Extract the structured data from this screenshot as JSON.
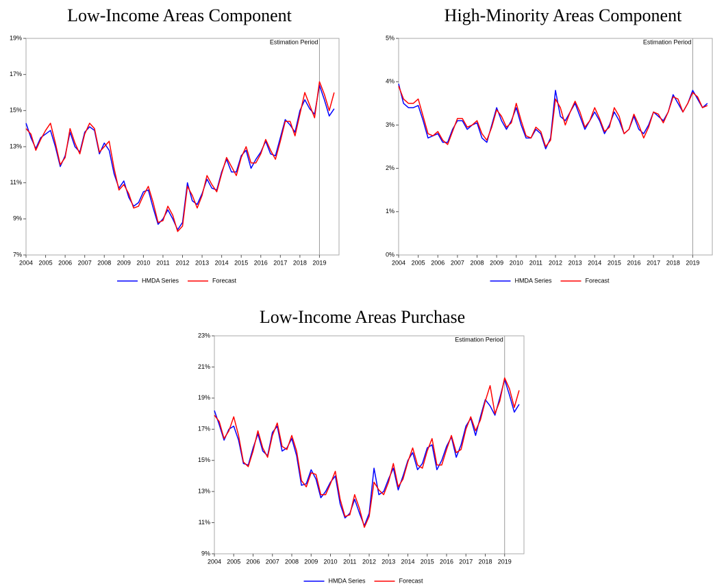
{
  "chart_data": [
    {
      "type": "line",
      "title": "Low-Income Areas Component",
      "x": [
        2004,
        2004.25,
        2004.5,
        2004.75,
        2005,
        2005.25,
        2005.5,
        2005.75,
        2006,
        2006.25,
        2006.5,
        2006.75,
        2007,
        2007.25,
        2007.5,
        2007.75,
        2008,
        2008.25,
        2008.5,
        2008.75,
        2009,
        2009.25,
        2009.5,
        2009.75,
        2010,
        2010.25,
        2010.5,
        2010.75,
        2011,
        2011.25,
        2011.5,
        2011.75,
        2012,
        2012.25,
        2012.5,
        2012.75,
        2013,
        2013.25,
        2013.5,
        2013.75,
        2014,
        2014.25,
        2014.5,
        2014.75,
        2015,
        2015.25,
        2015.5,
        2015.75,
        2016,
        2016.25,
        2016.5,
        2016.75,
        2017,
        2017.25,
        2017.5,
        2017.75,
        2018,
        2018.25,
        2018.5,
        2018.75,
        2019,
        2019.25,
        2019.5,
        2019.75
      ],
      "series": [
        {
          "name": "HMDA Series",
          "color": "#0000ff",
          "values": [
            14.3,
            13.5,
            12.9,
            13.5,
            13.7,
            13.9,
            13.0,
            11.9,
            12.5,
            13.8,
            13.0,
            12.7,
            13.8,
            14.1,
            13.9,
            12.6,
            13.2,
            12.8,
            11.5,
            10.7,
            11.1,
            10.2,
            9.7,
            9.9,
            10.5,
            10.6,
            9.6,
            8.7,
            9.0,
            9.5,
            9.0,
            8.4,
            8.8,
            11.0,
            10.0,
            9.8,
            10.4,
            11.2,
            10.7,
            10.6,
            11.6,
            12.3,
            11.6,
            11.6,
            12.5,
            12.8,
            11.8,
            12.3,
            12.7,
            13.3,
            12.6,
            12.5,
            13.5,
            14.5,
            14.2,
            13.8,
            15.0,
            15.6,
            15.1,
            14.8,
            16.4,
            15.6,
            14.7,
            15.1
          ]
        },
        {
          "name": "Forecast",
          "color": "#ff0000",
          "values": [
            14.0,
            13.7,
            12.8,
            13.4,
            13.9,
            14.3,
            13.2,
            12.0,
            12.4,
            14.0,
            13.2,
            12.6,
            13.7,
            14.3,
            14.0,
            12.7,
            13.0,
            13.3,
            11.8,
            10.6,
            10.9,
            10.4,
            9.6,
            9.7,
            10.3,
            10.8,
            9.9,
            8.8,
            8.9,
            9.7,
            9.2,
            8.3,
            8.6,
            10.8,
            10.3,
            9.6,
            10.3,
            11.4,
            10.9,
            10.5,
            11.5,
            12.4,
            11.9,
            11.4,
            12.4,
            13.0,
            12.1,
            12.1,
            12.6,
            13.4,
            12.8,
            12.3,
            13.3,
            14.4,
            14.4,
            13.6,
            14.8,
            16.0,
            15.3,
            14.6,
            16.6,
            15.9,
            15.0,
            16.0
          ]
        }
      ],
      "xlim": [
        2004,
        2020
      ],
      "xticks": [
        2004,
        2005,
        2006,
        2007,
        2008,
        2009,
        2010,
        2011,
        2012,
        2013,
        2014,
        2015,
        2016,
        2017,
        2018,
        2019
      ],
      "ylim": [
        7,
        19
      ],
      "yticks": [
        {
          "value": 7,
          "label": "7%"
        },
        {
          "value": 9,
          "label": "9%"
        },
        {
          "value": 11,
          "label": "11%"
        },
        {
          "value": 13,
          "label": "13%"
        },
        {
          "value": 15,
          "label": "15%"
        },
        {
          "value": 17,
          "label": "17%"
        },
        {
          "value": 19,
          "label": "19%"
        }
      ],
      "annotations": [
        {
          "x": 2019,
          "text": "Estimation Period"
        }
      ]
    },
    {
      "type": "line",
      "title": "High-Minority Areas Component",
      "x": [
        2004,
        2004.25,
        2004.5,
        2004.75,
        2005,
        2005.25,
        2005.5,
        2005.75,
        2006,
        2006.25,
        2006.5,
        2006.75,
        2007,
        2007.25,
        2007.5,
        2007.75,
        2008,
        2008.25,
        2008.5,
        2008.75,
        2009,
        2009.25,
        2009.5,
        2009.75,
        2010,
        2010.25,
        2010.5,
        2010.75,
        2011,
        2011.25,
        2011.5,
        2011.75,
        2012,
        2012.25,
        2012.5,
        2012.75,
        2013,
        2013.25,
        2013.5,
        2013.75,
        2014,
        2014.25,
        2014.5,
        2014.75,
        2015,
        2015.25,
        2015.5,
        2015.75,
        2016,
        2016.25,
        2016.5,
        2016.75,
        2017,
        2017.25,
        2017.5,
        2017.75,
        2018,
        2018.25,
        2018.5,
        2018.75,
        2019,
        2019.25,
        2019.5,
        2019.75
      ],
      "series": [
        {
          "name": "HMDA Series",
          "color": "#0000ff",
          "values": [
            3.95,
            3.5,
            3.4,
            3.4,
            3.45,
            3.1,
            2.7,
            2.75,
            2.8,
            2.6,
            2.6,
            2.9,
            3.1,
            3.1,
            2.9,
            3.0,
            3.05,
            2.7,
            2.6,
            3.0,
            3.4,
            3.1,
            2.9,
            3.1,
            3.4,
            3.0,
            2.7,
            2.7,
            2.9,
            2.8,
            2.45,
            2.7,
            3.8,
            3.2,
            3.1,
            3.3,
            3.5,
            3.2,
            2.9,
            3.1,
            3.3,
            3.1,
            2.8,
            3.0,
            3.3,
            3.1,
            2.8,
            2.9,
            3.2,
            2.9,
            2.8,
            3.0,
            3.3,
            3.2,
            3.1,
            3.3,
            3.7,
            3.5,
            3.3,
            3.5,
            3.8,
            3.6,
            3.4,
            3.5
          ]
        },
        {
          "name": "Forecast",
          "color": "#ff0000",
          "values": [
            3.9,
            3.6,
            3.5,
            3.5,
            3.6,
            3.2,
            2.8,
            2.75,
            2.85,
            2.65,
            2.55,
            2.85,
            3.15,
            3.15,
            2.95,
            3.0,
            3.1,
            2.8,
            2.65,
            2.95,
            3.35,
            3.2,
            2.95,
            3.05,
            3.5,
            3.1,
            2.75,
            2.7,
            2.95,
            2.85,
            2.5,
            2.65,
            3.6,
            3.4,
            3.0,
            3.3,
            3.55,
            3.3,
            2.95,
            3.1,
            3.4,
            3.15,
            2.85,
            2.95,
            3.4,
            3.2,
            2.8,
            2.9,
            3.25,
            3.0,
            2.7,
            2.95,
            3.3,
            3.25,
            3.05,
            3.3,
            3.65,
            3.6,
            3.3,
            3.5,
            3.75,
            3.65,
            3.4,
            3.45
          ]
        }
      ],
      "xlim": [
        2004,
        2020
      ],
      "xticks": [
        2004,
        2005,
        2006,
        2007,
        2008,
        2009,
        2010,
        2011,
        2012,
        2013,
        2014,
        2015,
        2016,
        2017,
        2018,
        2019
      ],
      "ylim": [
        0,
        5
      ],
      "yticks": [
        {
          "value": 0,
          "label": "0%"
        },
        {
          "value": 1,
          "label": "1%"
        },
        {
          "value": 2,
          "label": "2%"
        },
        {
          "value": 3,
          "label": "3%"
        },
        {
          "value": 4,
          "label": "4%"
        },
        {
          "value": 5,
          "label": "5%"
        }
      ],
      "annotations": [
        {
          "x": 2019,
          "text": "Estimation Period"
        }
      ]
    },
    {
      "type": "line",
      "title": "Low-Income Areas Purchase",
      "x": [
        2004,
        2004.25,
        2004.5,
        2004.75,
        2005,
        2005.25,
        2005.5,
        2005.75,
        2006,
        2006.25,
        2006.5,
        2006.75,
        2007,
        2007.25,
        2007.5,
        2007.75,
        2008,
        2008.25,
        2008.5,
        2008.75,
        2009,
        2009.25,
        2009.5,
        2009.75,
        2010,
        2010.25,
        2010.5,
        2010.75,
        2011,
        2011.25,
        2011.5,
        2011.75,
        2012,
        2012.25,
        2012.5,
        2012.75,
        2013,
        2013.25,
        2013.5,
        2013.75,
        2014,
        2014.25,
        2014.5,
        2014.75,
        2015,
        2015.25,
        2015.5,
        2015.75,
        2016,
        2016.25,
        2016.5,
        2016.75,
        2017,
        2017.25,
        2017.5,
        2017.75,
        2018,
        2018.25,
        2018.5,
        2018.75,
        2019,
        2019.25,
        2019.5,
        2019.75
      ],
      "series": [
        {
          "name": "HMDA Series",
          "color": "#0000ff",
          "values": [
            18.2,
            17.3,
            16.3,
            17.0,
            17.2,
            16.3,
            14.8,
            14.7,
            15.8,
            16.7,
            15.6,
            15.3,
            16.8,
            17.2,
            15.6,
            15.8,
            16.4,
            15.3,
            13.4,
            13.5,
            14.4,
            13.8,
            12.6,
            13.0,
            13.6,
            14.0,
            12.2,
            11.3,
            11.6,
            12.5,
            11.6,
            10.8,
            11.6,
            14.5,
            12.8,
            13.0,
            13.8,
            14.5,
            13.1,
            14.0,
            15.0,
            15.5,
            14.4,
            14.8,
            15.8,
            16.0,
            14.4,
            15.0,
            15.9,
            16.5,
            15.2,
            16.0,
            17.2,
            17.7,
            16.6,
            17.8,
            18.9,
            18.5,
            17.9,
            19.0,
            20.2,
            19.2,
            18.1,
            18.6
          ]
        },
        {
          "name": "Forecast",
          "color": "#ff0000",
          "values": [
            17.9,
            17.5,
            16.4,
            16.9,
            17.8,
            16.6,
            14.9,
            14.6,
            15.6,
            16.9,
            15.8,
            15.2,
            16.6,
            17.4,
            15.9,
            15.7,
            16.6,
            15.6,
            13.7,
            13.3,
            14.2,
            14.1,
            12.8,
            12.8,
            13.5,
            14.3,
            12.5,
            11.4,
            11.5,
            12.8,
            11.9,
            10.7,
            11.4,
            13.6,
            13.1,
            12.8,
            13.6,
            14.8,
            13.3,
            13.8,
            14.9,
            15.8,
            14.7,
            14.5,
            15.6,
            16.4,
            14.7,
            14.7,
            15.7,
            16.6,
            15.5,
            15.7,
            17.0,
            17.8,
            16.9,
            17.6,
            18.8,
            19.8,
            18.0,
            18.8,
            20.3,
            19.6,
            18.4,
            19.5
          ]
        }
      ],
      "xlim": [
        2004,
        2020
      ],
      "xticks": [
        2004,
        2005,
        2006,
        2007,
        2008,
        2009,
        2010,
        2011,
        2012,
        2013,
        2014,
        2015,
        2016,
        2017,
        2018,
        2019
      ],
      "ylim": [
        9,
        23
      ],
      "yticks": [
        {
          "value": 9,
          "label": "9%"
        },
        {
          "value": 11,
          "label": "11%"
        },
        {
          "value": 13,
          "label": "13%"
        },
        {
          "value": 15,
          "label": "15%"
        },
        {
          "value": 17,
          "label": "17%"
        },
        {
          "value": 19,
          "label": "19%"
        },
        {
          "value": 21,
          "label": "21%"
        },
        {
          "value": 23,
          "label": "23%"
        }
      ],
      "annotations": [
        {
          "x": 2019,
          "text": "Estimation Period"
        }
      ]
    }
  ]
}
